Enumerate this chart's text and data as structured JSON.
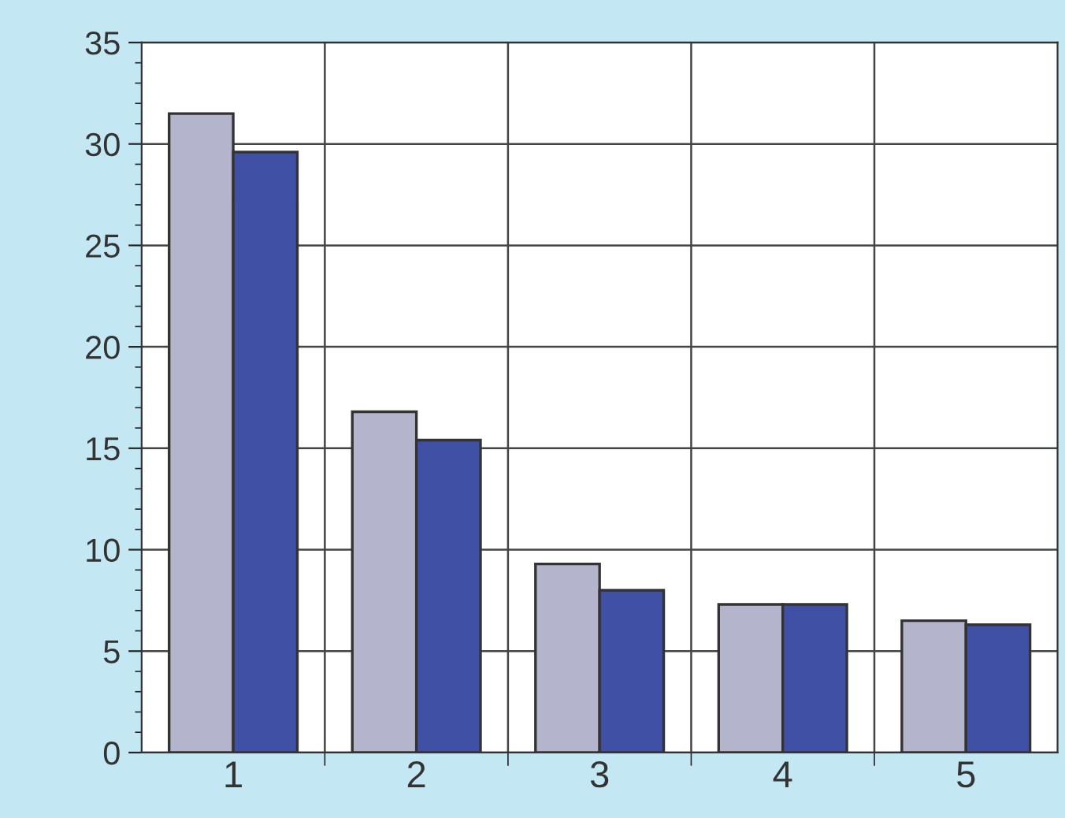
{
  "chart_data": {
    "type": "bar",
    "categories": [
      "1",
      "2",
      "3",
      "4",
      "5"
    ],
    "series": [
      {
        "color": "#b4b4cc",
        "values": [
          31.5,
          16.8,
          9.3,
          7.3,
          6.5
        ]
      },
      {
        "color": "#4050a4",
        "values": [
          29.6,
          15.4,
          8.0,
          7.3,
          6.3
        ]
      }
    ],
    "ylim": [
      0,
      35
    ],
    "yticks": [
      0,
      5,
      10,
      15,
      20,
      25,
      30,
      35
    ],
    "grid": true,
    "legend": false
  }
}
